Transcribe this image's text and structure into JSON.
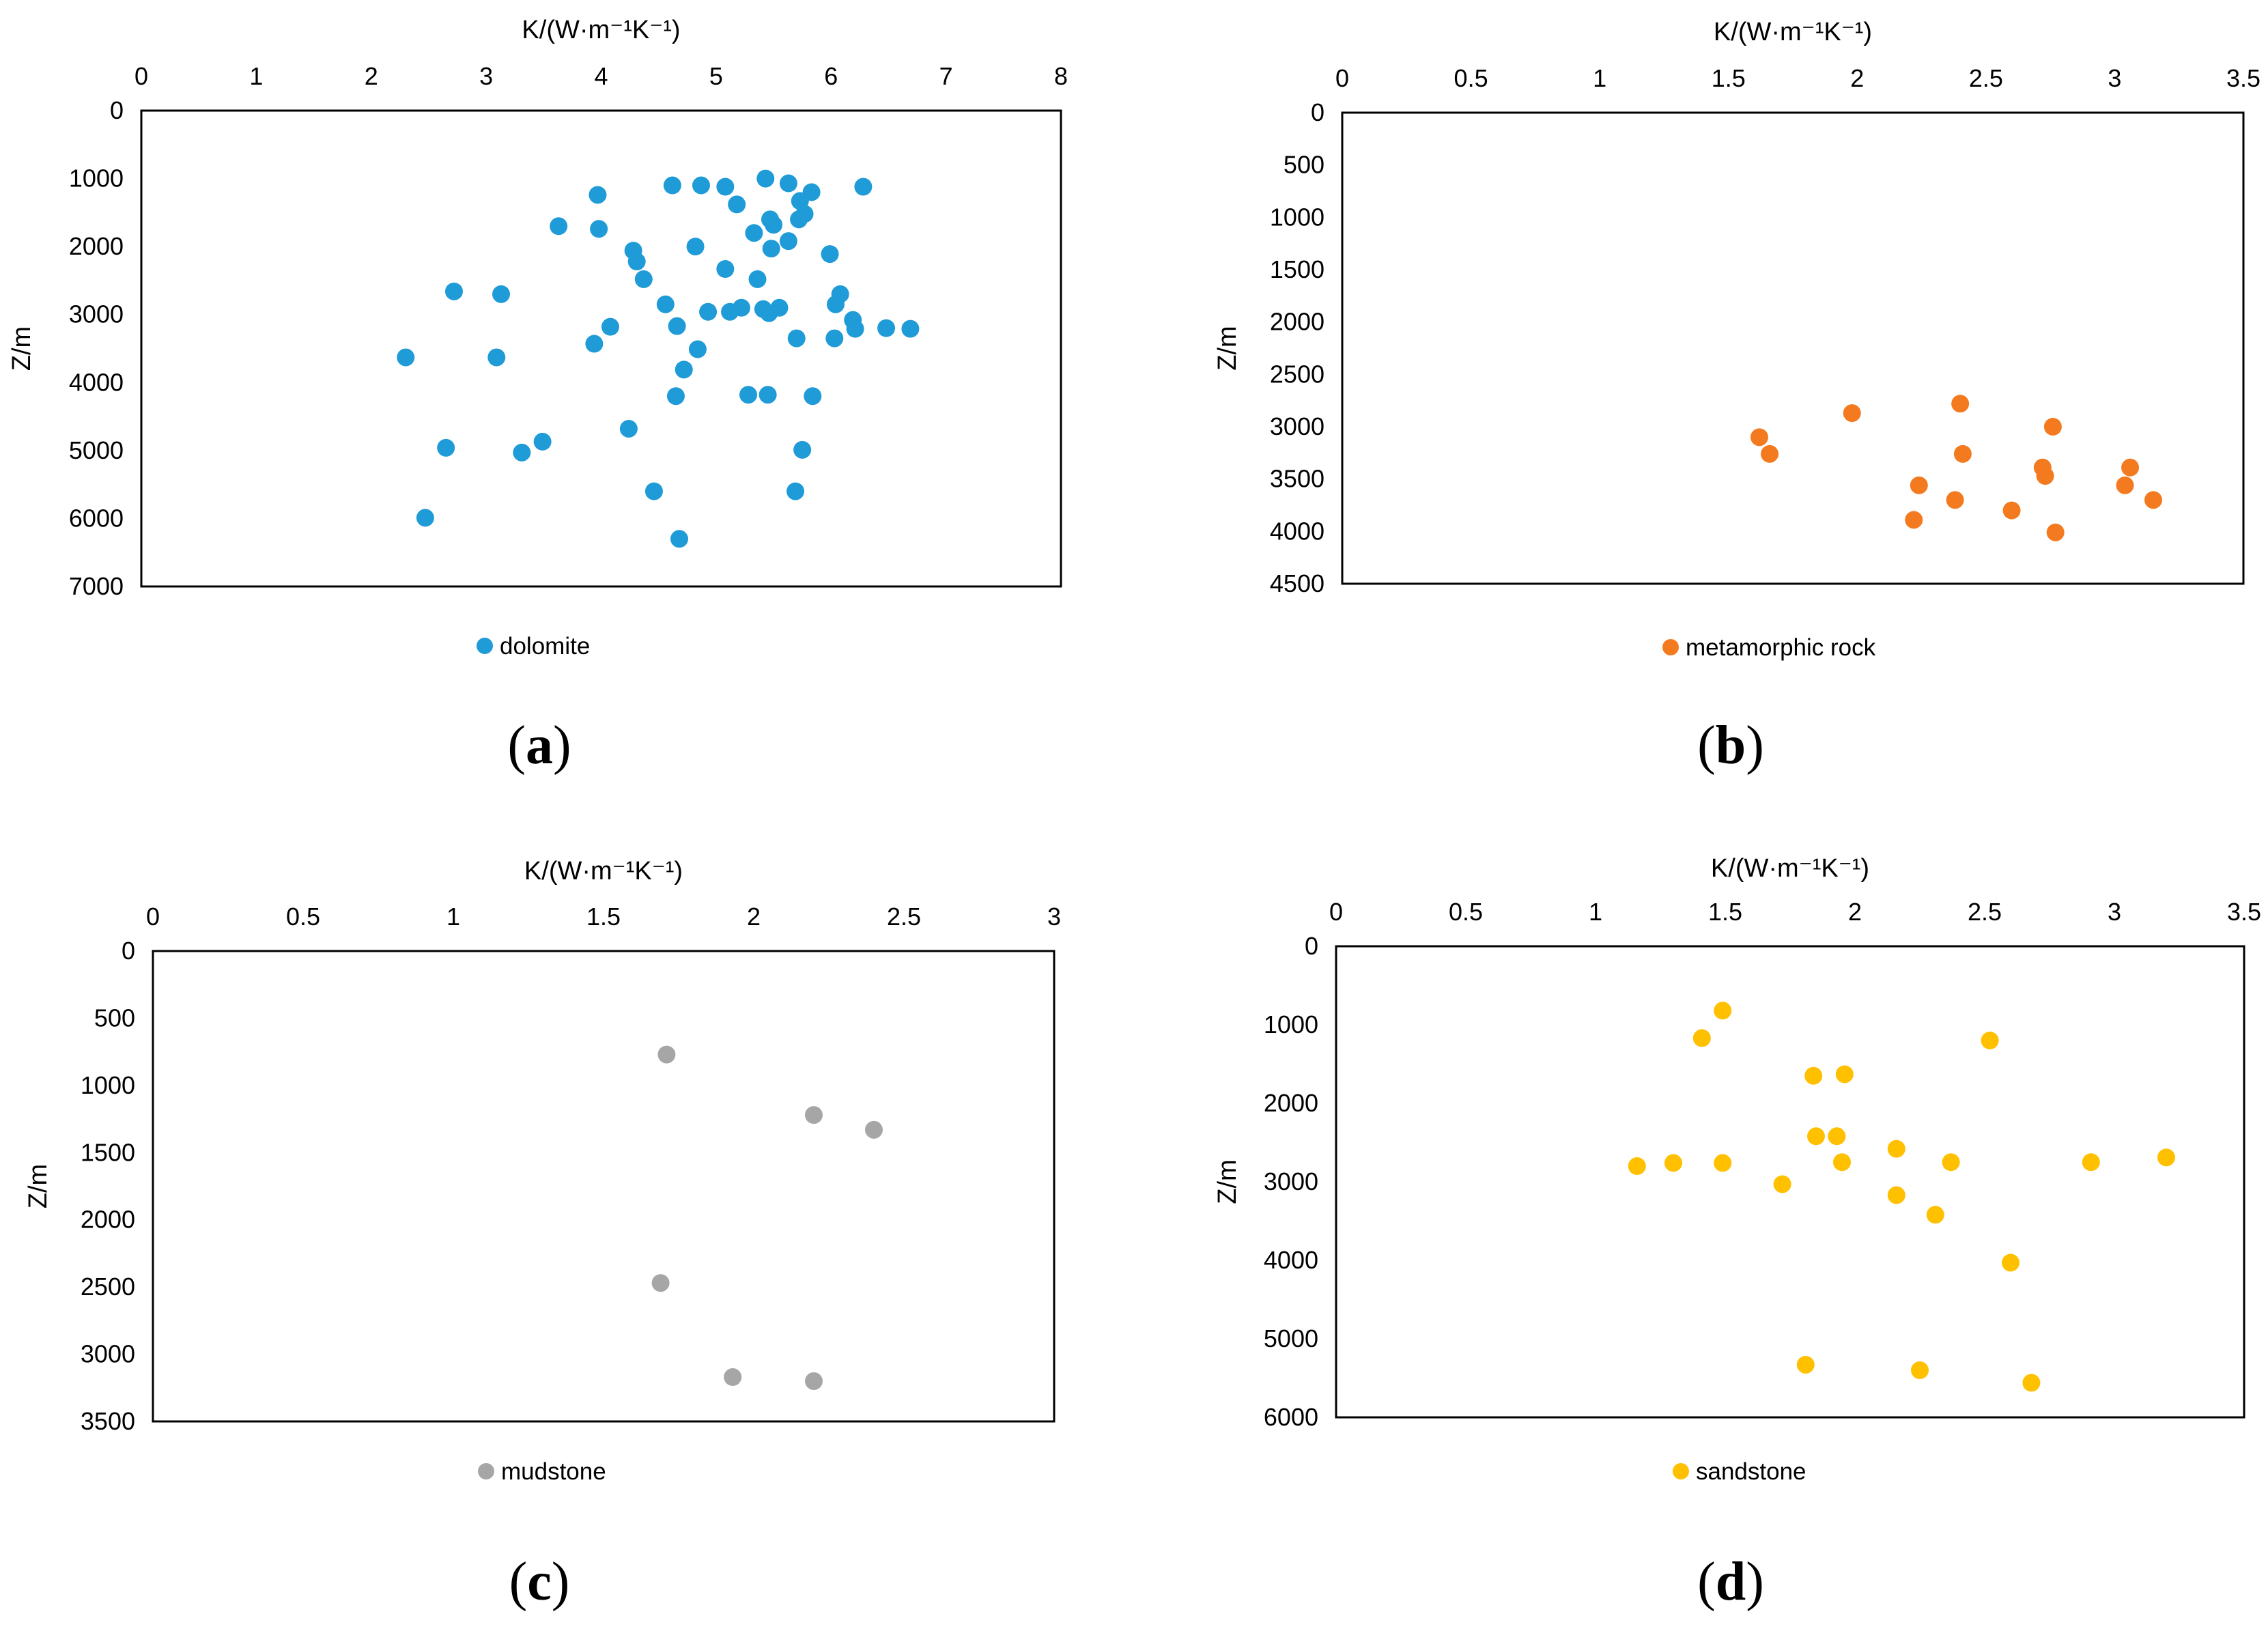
{
  "chart_data": [
    {
      "type": "scatter",
      "panel_label": "a",
      "xlabel": "K/(W·m⁻¹K⁻¹)",
      "ylabel": "Z/m",
      "xlim": [
        0,
        8
      ],
      "ylim": [
        0,
        7000
      ],
      "y_inverted": true,
      "x_ticks": [
        "0",
        "1",
        "2",
        "3",
        "4",
        "5",
        "6",
        "7",
        "8"
      ],
      "y_ticks": [
        "0",
        "1000",
        "2000",
        "3000",
        "4000",
        "5000",
        "6000",
        "7000"
      ],
      "legend_position": "bottom-center",
      "series": [
        {
          "name": "dolomite",
          "color": "#1f9bd7",
          "points": [
            [
              5.43,
              1000
            ],
            [
              4.62,
              1100
            ],
            [
              4.87,
              1100
            ],
            [
              5.08,
              1120
            ],
            [
              5.63,
              1070
            ],
            [
              5.83,
              1200
            ],
            [
              6.28,
              1120
            ],
            [
              3.97,
              1240
            ],
            [
              5.18,
              1380
            ],
            [
              5.73,
              1330
            ],
            [
              5.77,
              1520
            ],
            [
              5.72,
              1600
            ],
            [
              5.47,
              1600
            ],
            [
              5.5,
              1680
            ],
            [
              3.63,
              1700
            ],
            [
              3.98,
              1740
            ],
            [
              5.33,
              1800
            ],
            [
              5.63,
              1920
            ],
            [
              4.82,
              2000
            ],
            [
              5.48,
              2030
            ],
            [
              4.28,
              2060
            ],
            [
              5.99,
              2110
            ],
            [
              4.31,
              2220
            ],
            [
              5.08,
              2330
            ],
            [
              4.37,
              2480
            ],
            [
              5.36,
              2480
            ],
            [
              2.72,
              2660
            ],
            [
              3.13,
              2700
            ],
            [
              6.08,
              2700
            ],
            [
              6.04,
              2850
            ],
            [
              4.56,
              2850
            ],
            [
              5.22,
              2900
            ],
            [
              5.41,
              2920
            ],
            [
              5.55,
              2900
            ],
            [
              4.93,
              2960
            ],
            [
              5.12,
              2960
            ],
            [
              5.46,
              2980
            ],
            [
              6.19,
              3080
            ],
            [
              6.21,
              3210
            ],
            [
              4.08,
              3180
            ],
            [
              4.66,
              3170
            ],
            [
              6.48,
              3200
            ],
            [
              6.69,
              3210
            ],
            [
              5.7,
              3350
            ],
            [
              6.03,
              3350
            ],
            [
              3.94,
              3430
            ],
            [
              4.84,
              3510
            ],
            [
              2.3,
              3630
            ],
            [
              3.09,
              3630
            ],
            [
              4.72,
              3810
            ],
            [
              5.28,
              4180
            ],
            [
              5.45,
              4180
            ],
            [
              4.65,
              4200
            ],
            [
              5.84,
              4200
            ],
            [
              4.24,
              4680
            ],
            [
              3.49,
              4870
            ],
            [
              2.65,
              4960
            ],
            [
              3.31,
              5030
            ],
            [
              5.75,
              4990
            ],
            [
              4.46,
              5600
            ],
            [
              5.69,
              5600
            ],
            [
              2.47,
              5990
            ],
            [
              4.68,
              6300
            ]
          ]
        }
      ]
    },
    {
      "type": "scatter",
      "panel_label": "b",
      "xlabel": "K/(W·m⁻¹K⁻¹)",
      "ylabel": "Z/m",
      "xlim": [
        0,
        3.5
      ],
      "ylim": [
        0,
        4500
      ],
      "y_inverted": true,
      "x_ticks": [
        "0",
        "0.5",
        "1",
        "1.5",
        "2",
        "2.5",
        "3",
        "3.5"
      ],
      "y_ticks": [
        "0",
        "500",
        "1000",
        "1500",
        "2000",
        "2500",
        "3000",
        "3500",
        "4000",
        "4500"
      ],
      "legend_position": "bottom-center",
      "series": [
        {
          "name": "metamorphic rock",
          "color": "#f47a20",
          "points": [
            [
              2.4,
              2780
            ],
            [
              1.98,
              2870
            ],
            [
              2.76,
              3000
            ],
            [
              1.62,
              3100
            ],
            [
              1.66,
              3260
            ],
            [
              2.41,
              3260
            ],
            [
              2.72,
              3390
            ],
            [
              3.06,
              3390
            ],
            [
              2.73,
              3470
            ],
            [
              2.24,
              3560
            ],
            [
              3.04,
              3560
            ],
            [
              2.38,
              3700
            ],
            [
              3.15,
              3700
            ],
            [
              2.6,
              3800
            ],
            [
              2.22,
              3890
            ],
            [
              2.77,
              4010
            ]
          ]
        }
      ]
    },
    {
      "type": "scatter",
      "panel_label": "c",
      "xlabel": "K/(W·m⁻¹K⁻¹)",
      "ylabel": "Z/m",
      "xlim": [
        0,
        3
      ],
      "ylim": [
        0,
        3500
      ],
      "y_inverted": true,
      "x_ticks": [
        "0",
        "0.5",
        "1",
        "1.5",
        "2",
        "2.5",
        "3"
      ],
      "y_ticks": [
        "0",
        "500",
        "1000",
        "1500",
        "2000",
        "2500",
        "3000",
        "3500"
      ],
      "legend_position": "bottom-center",
      "series": [
        {
          "name": "mudstone",
          "color": "#a6a6a6",
          "points": [
            [
              1.71,
              770
            ],
            [
              2.2,
              1220
            ],
            [
              2.4,
              1330
            ],
            [
              1.69,
              2470
            ],
            [
              1.93,
              3170
            ],
            [
              2.2,
              3200
            ]
          ]
        }
      ]
    },
    {
      "type": "scatter",
      "panel_label": "d",
      "xlabel": "K/(W·m⁻¹K⁻¹)",
      "ylabel": "Z/m",
      "xlim": [
        0,
        3.5
      ],
      "ylim": [
        0,
        6000
      ],
      "y_inverted": true,
      "x_ticks": [
        "0",
        "0.5",
        "1",
        "1.5",
        "2",
        "2.5",
        "3",
        "3.5"
      ],
      "y_ticks": [
        "0",
        "1000",
        "2000",
        "3000",
        "4000",
        "5000",
        "6000"
      ],
      "legend_position": "bottom-center",
      "series": [
        {
          "name": "sandstone",
          "color": "#ffc000",
          "points": [
            [
              1.49,
              820
            ],
            [
              1.41,
              1170
            ],
            [
              2.52,
              1200
            ],
            [
              1.84,
              1650
            ],
            [
              1.96,
              1630
            ],
            [
              1.85,
              2420
            ],
            [
              1.93,
              2420
            ],
            [
              2.16,
              2580
            ],
            [
              2.37,
              2750
            ],
            [
              2.91,
              2750
            ],
            [
              3.2,
              2690
            ],
            [
              1.16,
              2800
            ],
            [
              1.3,
              2760
            ],
            [
              1.49,
              2760
            ],
            [
              1.95,
              2750
            ],
            [
              1.72,
              3030
            ],
            [
              2.16,
              3170
            ],
            [
              2.31,
              3420
            ],
            [
              2.6,
              4030
            ],
            [
              1.81,
              5330
            ],
            [
              2.25,
              5400
            ],
            [
              2.68,
              5560
            ]
          ]
        }
      ]
    }
  ]
}
